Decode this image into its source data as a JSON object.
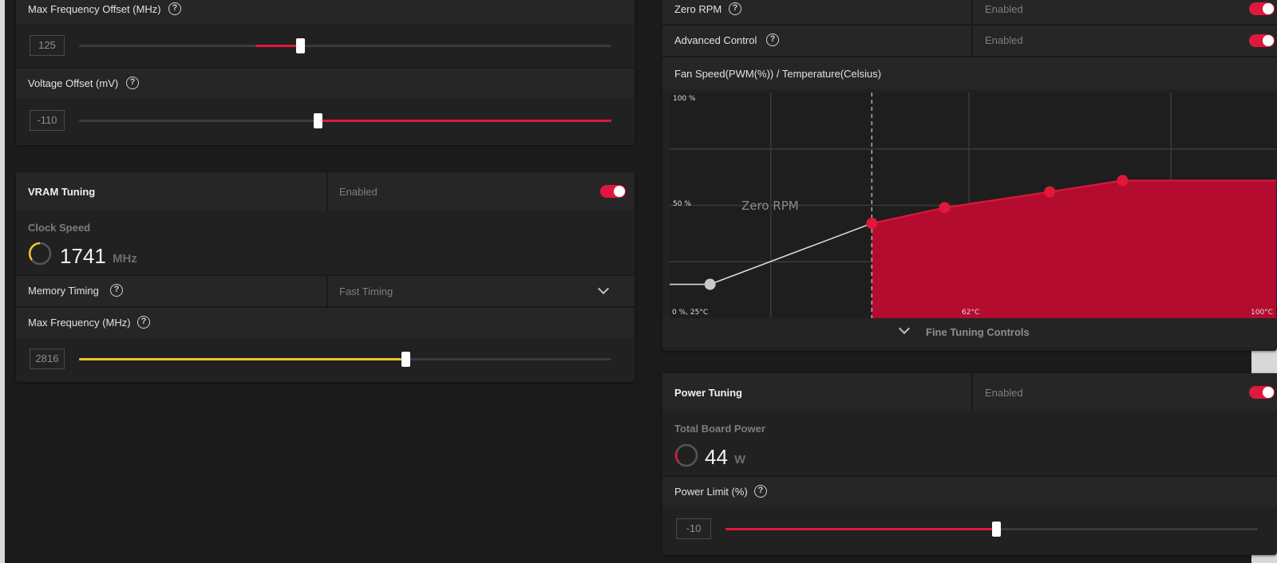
{
  "gpu_tuning": {
    "max_freq_offset": {
      "label": "Max Frequency Offset (MHz)",
      "value": "125",
      "fraction": 0.42
    },
    "voltage_offset": {
      "label": "Voltage Offset (mV)",
      "value": "-110",
      "fraction": 0.45
    }
  },
  "vram_tuning": {
    "title": "VRAM Tuning",
    "state": "Enabled",
    "clock_label": "Clock Speed",
    "clock_value": "1741",
    "clock_unit": "MHz",
    "memory_timing_label": "Memory Timing",
    "memory_timing_value": "Fast Timing",
    "max_freq_label": "Max Frequency (MHz)",
    "max_freq_value": "2816",
    "max_freq_fraction": 0.62
  },
  "fan_tuning": {
    "zero_rpm_label": "Zero RPM",
    "zero_rpm_state": "Enabled",
    "advanced_label": "Advanced Control",
    "advanced_state": "Enabled",
    "curve_title": "Fan Speed(PWM(%)) / Temperature(Celsius)",
    "fine_tuning_label": "Fine Tuning Controls"
  },
  "power_tuning": {
    "title": "Power Tuning",
    "state": "Enabled",
    "power_label": "Total Board Power",
    "power_value": "44",
    "power_unit": "W",
    "limit_label": "Power Limit (%)",
    "limit_value": "-10",
    "limit_fraction": 0.5
  },
  "help_glyph": "?",
  "colors": {
    "accent_red": "#e0183c",
    "accent_yellow": "#f2c12e",
    "curve_fill": "#b30c2e"
  },
  "chart_data": {
    "type": "line",
    "ylabel_top": "100 %",
    "ylabel_mid": "50 %",
    "origin_label": "0 %, 25°C",
    "xlabel_mid": "62°C",
    "xlabel_right": "100°C",
    "zero_rpm_annotation": "Zero RPM",
    "x_range": [
      25,
      100
    ],
    "y_range": [
      0,
      100
    ],
    "zero_rpm_threshold": 50,
    "points": [
      {
        "x": 30,
        "y": 15
      },
      {
        "x": 50,
        "y": 42
      },
      {
        "x": 59,
        "y": 49
      },
      {
        "x": 72,
        "y": 56
      },
      {
        "x": 81,
        "y": 61
      }
    ]
  }
}
